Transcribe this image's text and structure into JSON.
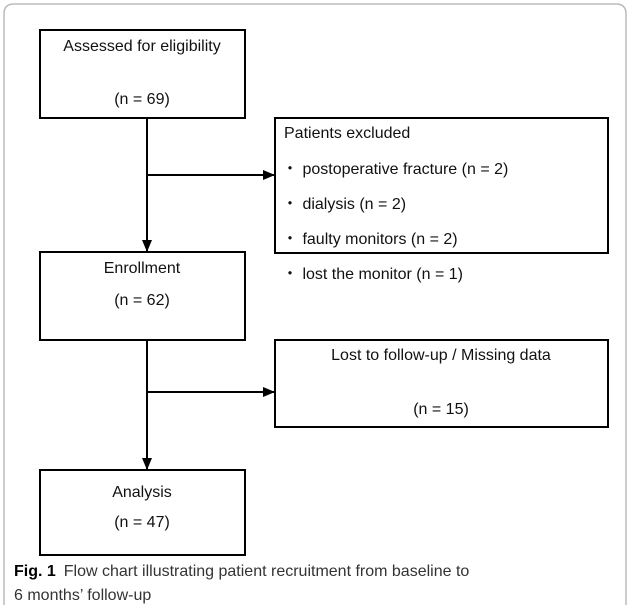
{
  "nodes": [
    {
      "label": "Assessed for eligibility",
      "count": "(n = 69)"
    },
    {
      "label": "Patients excluded",
      "items": [
        "・ postoperative fracture (n = 2)",
        "・ dialysis (n = 2)",
        "・ faulty monitors (n = 2)",
        "・ lost the monitor (n = 1)"
      ]
    },
    {
      "label": "Enrollment",
      "count": "(n = 62)"
    },
    {
      "label": "Lost to follow-up / Missing data",
      "count": "(n = 15)"
    },
    {
      "label": "Analysis",
      "count": "(n = 47)"
    }
  ],
  "caption": {
    "label": "Fig. 1",
    "lines": [
      "Flow chart illustrating patient recruitment from baseline to",
      "6 months’ follow-up"
    ]
  }
}
